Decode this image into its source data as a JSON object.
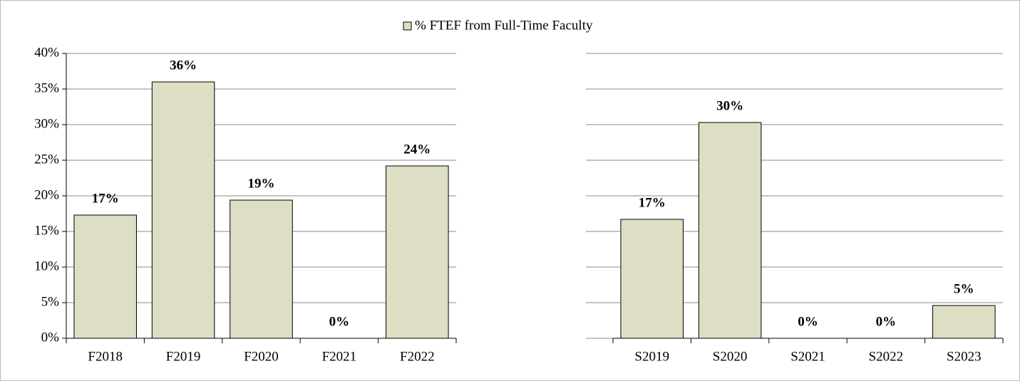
{
  "chart_data": [
    {
      "type": "bar",
      "categories": [
        "F2018",
        "F2019",
        "F2020",
        "F2021",
        "F2022"
      ],
      "series": [
        {
          "name": "% FTEF from Full-Time Faculty",
          "color": "#dddec4",
          "values": [
            17.3,
            36,
            19.4,
            0,
            24.2
          ],
          "value_labels": [
            "17%",
            "36%",
            "19%",
            "0%",
            "24%"
          ]
        }
      ],
      "ylim": [
        0,
        40
      ],
      "yticks": [
        {
          "value": 0,
          "label": "0%"
        },
        {
          "value": 5,
          "label": "5%"
        },
        {
          "value": 10,
          "label": "10%"
        },
        {
          "value": 15,
          "label": "15%"
        },
        {
          "value": 20,
          "label": "20%"
        },
        {
          "value": 25,
          "label": "25%"
        },
        {
          "value": 30,
          "label": "30%"
        },
        {
          "value": 35,
          "label": "35%"
        },
        {
          "value": 40,
          "label": "40%"
        }
      ],
      "grid": true
    },
    {
      "type": "bar",
      "categories": [
        "S2019",
        "S2020",
        "S2021",
        "S2022",
        "S2023"
      ],
      "series": [
        {
          "color": "#dddec4",
          "values": [
            16.7,
            30.3,
            0,
            0,
            4.6
          ],
          "value_labels": [
            "17%",
            "30%",
            "0%",
            "0%",
            "5%"
          ]
        }
      ],
      "ylim": [
        0,
        40
      ],
      "yticks": [
        0,
        5,
        10,
        15,
        20,
        25,
        30,
        35,
        40
      ],
      "ytick_labels": false,
      "grid": true
    }
  ]
}
